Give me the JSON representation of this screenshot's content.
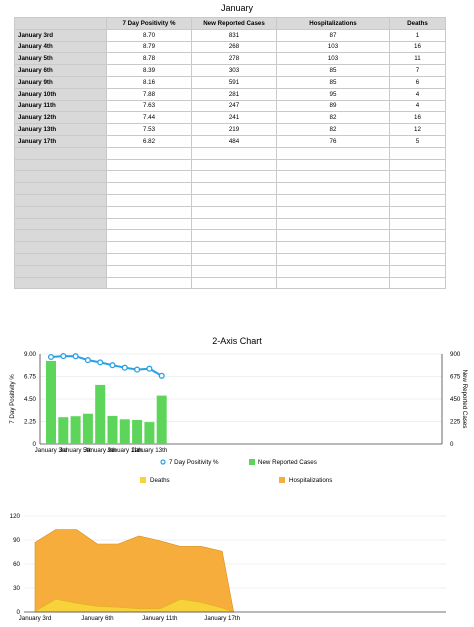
{
  "table": {
    "title": "January",
    "columns": [
      "",
      "7 Day Positivity %",
      "New Reported Cases",
      "Hospitalizations",
      "Deaths"
    ],
    "rows": [
      [
        "January 3rd",
        "8.70",
        "831",
        "87",
        "1"
      ],
      [
        "January 4th",
        "8.79",
        "268",
        "103",
        "16"
      ],
      [
        "January 5th",
        "8.78",
        "278",
        "103",
        "11"
      ],
      [
        "January 6th",
        "8.39",
        "303",
        "85",
        "7"
      ],
      [
        "January 9th",
        "8.16",
        "591",
        "85",
        "6"
      ],
      [
        "January 10th",
        "7.88",
        "281",
        "95",
        "4"
      ],
      [
        "January 11th",
        "7.63",
        "247",
        "89",
        "4"
      ],
      [
        "January 12th",
        "7.44",
        "241",
        "82",
        "16"
      ],
      [
        "January 13th",
        "7.53",
        "219",
        "82",
        "12"
      ],
      [
        "January 17th",
        "6.82",
        "484",
        "76",
        "5"
      ]
    ],
    "empty_rows": 12
  },
  "colors": {
    "header_bg": "#d9d9d9",
    "grid_line": "#c9c9c9",
    "cases_green": "#5dd55b",
    "positivity_blue": "#27a1e6",
    "deaths_yellow": "#f7d23a",
    "hospitalizations_orange": "#f6ad3c"
  },
  "chart_data": [
    {
      "type": "bar",
      "title": "2-Axis Chart",
      "categories": [
        "January 3rd",
        "January 4th",
        "January 5th",
        "January 6th",
        "January 9th",
        "January 10th",
        "January 11th",
        "January 12th",
        "January 13th",
        "January 17th"
      ],
      "x_tick_labels": [
        "January 3rd",
        "January 5th",
        "January 9th",
        "January 11th",
        "January 13th"
      ],
      "x_tick_indices": [
        0,
        2,
        4,
        6,
        8
      ],
      "series": [
        {
          "name": "7 Day Positivity %",
          "type": "line",
          "axis": "left",
          "color": "#27a1e6",
          "values": [
            8.7,
            8.79,
            8.78,
            8.39,
            8.16,
            7.88,
            7.63,
            7.44,
            7.53,
            6.82
          ]
        },
        {
          "name": "New Reported Cases",
          "type": "bar",
          "axis": "right",
          "color": "#5dd55b",
          "values": [
            831,
            268,
            278,
            303,
            591,
            281,
            247,
            241,
            219,
            484
          ]
        }
      ],
      "ylabel": "7 Day Positivity %",
      "ylabel_right": "New Reported Cases",
      "ylim": [
        0,
        9
      ],
      "ylim_right": [
        0,
        900
      ],
      "y_ticks": [
        "0",
        "2.25",
        "4.50",
        "6.75",
        "9.00"
      ],
      "y_ticks_right": [
        "0",
        "225",
        "450",
        "675",
        "900"
      ],
      "legend_position": "bottom"
    },
    {
      "type": "area",
      "categories": [
        "January 3rd",
        "January 4th",
        "January 5th",
        "January 6th",
        "January 9th",
        "January 10th",
        "January 11th",
        "January 12th",
        "January 13th",
        "January 17th"
      ],
      "x_tick_labels": [
        "January 3rd",
        "January 6th",
        "January 11th",
        "January 17th"
      ],
      "x_tick_indices": [
        0,
        3,
        6,
        9
      ],
      "series": [
        {
          "name": "Deaths",
          "color": "#f7d23a",
          "values": [
            1,
            16,
            11,
            7,
            6,
            4,
            4,
            16,
            12,
            5
          ]
        },
        {
          "name": "Hospitalizations",
          "color": "#f6ad3c",
          "values": [
            87,
            103,
            103,
            85,
            85,
            95,
            89,
            82,
            82,
            76
          ]
        }
      ],
      "ylim": [
        0,
        120
      ],
      "y_ticks": [
        "0",
        "30",
        "60",
        "90",
        "120"
      ],
      "legend_position": "top"
    }
  ]
}
